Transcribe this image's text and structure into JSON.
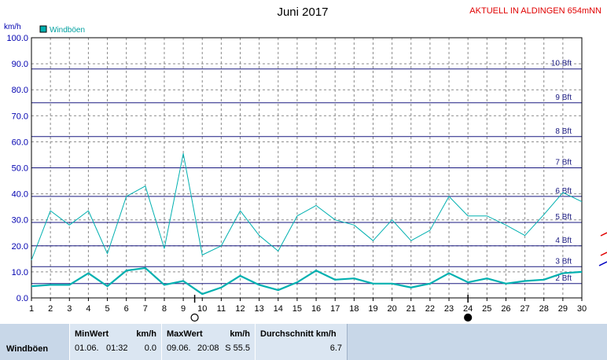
{
  "header": {
    "title": "Juni 2017",
    "station": "AKTUELL IN ALDINGEN 654mNN"
  },
  "colors": {
    "series": "#00b0b0",
    "bft_line": "#1a1a80",
    "station_text": "#e00000",
    "grid": "#8a8a8a"
  },
  "chart_data": {
    "type": "line",
    "title": "Juni 2017",
    "ylabel": "km/h",
    "ylim": [
      0,
      100
    ],
    "y_ticks": [
      "0.0",
      "10.0",
      "20.0",
      "30.0",
      "40.0",
      "50.0",
      "60.0",
      "70.0",
      "80.0",
      "90.0",
      "100.0"
    ],
    "x": [
      1,
      2,
      3,
      4,
      5,
      6,
      7,
      8,
      9,
      10,
      11,
      12,
      13,
      14,
      15,
      16,
      17,
      18,
      19,
      20,
      21,
      22,
      23,
      24,
      25,
      26,
      27,
      28,
      29,
      30
    ],
    "xlim": [
      1,
      30
    ],
    "legend": {
      "label": "Windböen",
      "placement": "top-left"
    },
    "series": [
      {
        "name": "Windböen",
        "role": "max",
        "values": [
          14.5,
          33.5,
          28,
          33.5,
          17,
          39,
          43,
          19,
          55.5,
          16.5,
          20,
          33.5,
          24,
          18,
          31.5,
          35.5,
          30,
          28,
          22,
          30,
          22,
          26,
          39,
          31.5,
          31.5,
          28,
          24,
          32,
          40.5,
          37
        ]
      },
      {
        "name": "Windböen",
        "role": "average",
        "values": [
          4.5,
          5,
          5,
          9.5,
          4.5,
          10.5,
          11.5,
          5,
          6.5,
          1.5,
          4,
          8.5,
          5,
          3,
          6,
          10.5,
          7,
          7.5,
          5.5,
          5.5,
          4,
          5.5,
          9.5,
          6,
          7.5,
          5.5,
          6.5,
          7,
          9.5,
          10
        ]
      }
    ],
    "beaufort": [
      {
        "label": "2 Bft",
        "kmh": 5.5
      },
      {
        "label": "3 Bft",
        "kmh": 12
      },
      {
        "label": "4 Bft",
        "kmh": 20
      },
      {
        "label": "5 Bft",
        "kmh": 29
      },
      {
        "label": "6 Bft",
        "kmh": 39
      },
      {
        "label": "7 Bft",
        "kmh": 50
      },
      {
        "label": "8 Bft",
        "kmh": 62
      },
      {
        "label": "9 Bft",
        "kmh": 75
      },
      {
        "label": "10 Bft",
        "kmh": 88
      }
    ],
    "moon_phases": [
      {
        "day": 9.6,
        "phase": "full-moon"
      },
      {
        "day": 24,
        "phase": "new-moon"
      }
    ],
    "grid": true
  },
  "stats": {
    "row_label": "Windböen",
    "min": {
      "header": "MinWert",
      "unit": "km/h",
      "date": "01.06.",
      "time": "01:32",
      "value": "0.0"
    },
    "max": {
      "header": "MaxWert",
      "unit": "km/h",
      "date": "09.06.",
      "time": "20:08",
      "value": "S 55.5"
    },
    "avg": {
      "header": "Durchschnitt km/h",
      "value": "6.7"
    }
  }
}
